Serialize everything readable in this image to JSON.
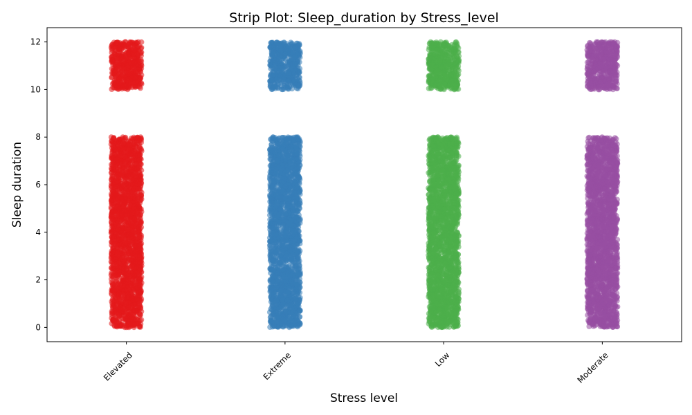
{
  "chart_data": {
    "type": "scatter",
    "subtype": "strip",
    "title": "Strip Plot: Sleep_duration by Stress_level",
    "xlabel": "Stress level",
    "ylabel": "Sleep duration",
    "categories": [
      "Elevated",
      "Extreme",
      "Low",
      "Moderate"
    ],
    "colors": [
      "#e41a1c",
      "#377eb8",
      "#4daf4a",
      "#984ea3"
    ],
    "yticks": [
      0,
      2,
      4,
      6,
      8,
      10,
      12
    ],
    "ylim": [
      -0.6,
      12.6
    ],
    "grid": false,
    "legend": "none",
    "series": [
      {
        "category": "Elevated",
        "ranges": [
          [
            0,
            8
          ],
          [
            10,
            12
          ]
        ]
      },
      {
        "category": "Extreme",
        "ranges": [
          [
            0,
            8
          ],
          [
            10,
            12
          ]
        ]
      },
      {
        "category": "Low",
        "ranges": [
          [
            0,
            8
          ],
          [
            10,
            12
          ]
        ]
      },
      {
        "category": "Moderate",
        "ranges": [
          [
            0,
            8
          ],
          [
            10,
            12
          ]
        ]
      }
    ]
  }
}
